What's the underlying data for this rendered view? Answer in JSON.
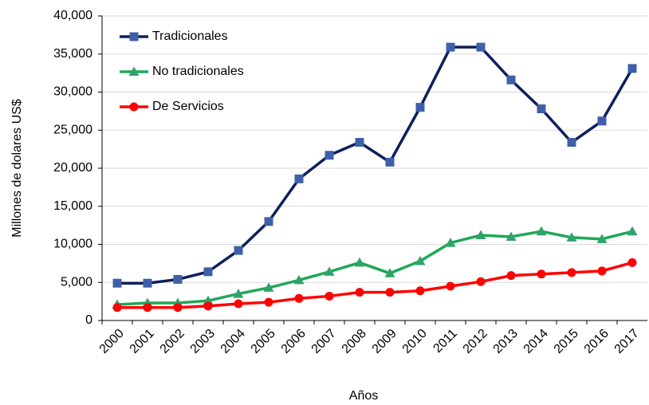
{
  "chart_data": {
    "type": "line",
    "x_label": "Años",
    "y_label": "Millones de dolares  US$",
    "categories": [
      "2000",
      "2001",
      "2002",
      "2003",
      "2004",
      "2005",
      "2006",
      "2007",
      "2008",
      "2009",
      "2010",
      "2011",
      "2012",
      "2013",
      "2014",
      "2015",
      "2016",
      "2017"
    ],
    "series": [
      {
        "name": "Tradicionales",
        "color": "#0d1f5c",
        "marker_color": "#3f60a8",
        "marker": "square",
        "values": [
          4900,
          4900,
          5400,
          6400,
          9200,
          13000,
          18600,
          21700,
          23400,
          20800,
          28000,
          35900,
          35900,
          31600,
          27800,
          23400,
          26200,
          33100
        ]
      },
      {
        "name": "No tradicionales",
        "color": "#1fa855",
        "marker_color": "#2fa36b",
        "marker": "triangle",
        "values": [
          2100,
          2300,
          2300,
          2600,
          3500,
          4300,
          5300,
          6400,
          7600,
          6200,
          7800,
          10200,
          11200,
          11000,
          11700,
          10900,
          10700,
          11700
        ]
      },
      {
        "name": "De Servicios",
        "color": "#ff0000",
        "marker_color": "#ff0000",
        "marker": "circle",
        "values": [
          1700,
          1700,
          1700,
          1900,
          2200,
          2400,
          2900,
          3200,
          3700,
          3700,
          3900,
          4500,
          5100,
          5900,
          6100,
          6300,
          6500,
          7600
        ]
      }
    ],
    "ylim": [
      0,
      40000
    ],
    "yticks": [
      0,
      {
        "value": 5000,
        "label": "5,000"
      },
      {
        "value": 10000,
        "label": "10,000"
      },
      {
        "value": 15000,
        "label": "15,000"
      },
      {
        "value": 20000,
        "label": "20,000"
      },
      {
        "value": 25000,
        "label": "25,000"
      },
      {
        "value": 30000,
        "label": "30,000"
      },
      {
        "value": 35000,
        "label": "35,000"
      },
      {
        "value": 40000,
        "label": "40,000"
      }
    ],
    "grid": true,
    "legend": "upper left"
  }
}
